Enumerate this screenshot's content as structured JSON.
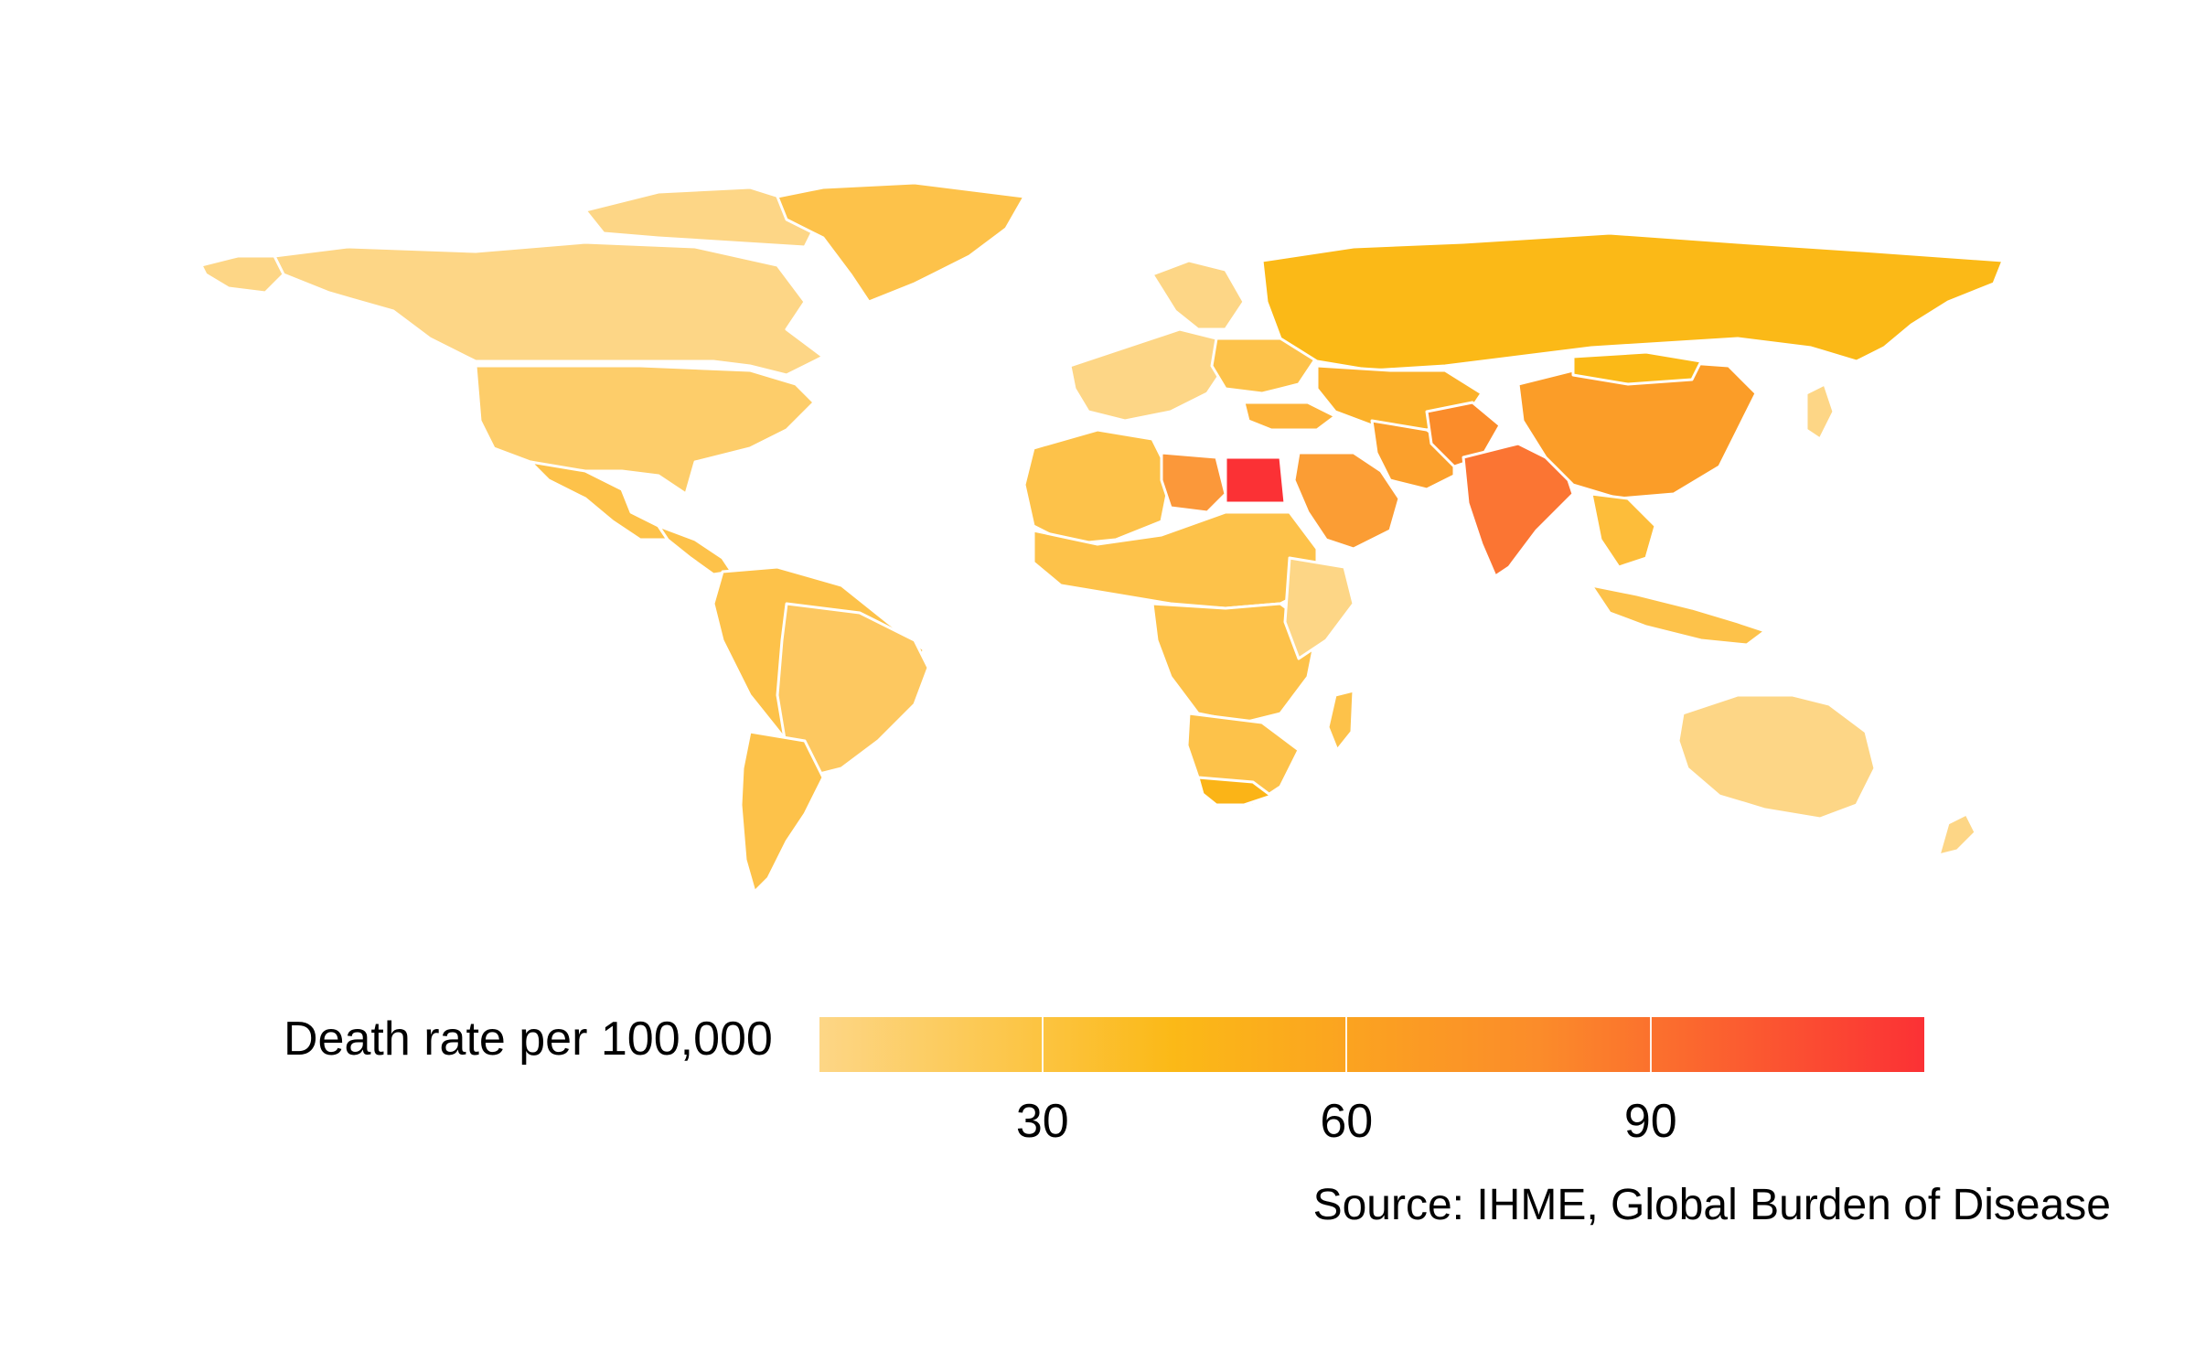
{
  "map": {
    "projection": "world",
    "colors": {
      "low": "#fdd686",
      "mid": "#fbb917",
      "high_mid": "#fb8c2a",
      "high": "#fb3135",
      "border": "#ffffff"
    },
    "regions": [
      {
        "name": "canada",
        "value": 14
      },
      {
        "name": "united-states",
        "value": 20
      },
      {
        "name": "greenland",
        "value": 28
      },
      {
        "name": "mexico",
        "value": 30
      },
      {
        "name": "brazil",
        "value": 28
      },
      {
        "name": "argentina",
        "value": 32
      },
      {
        "name": "russia",
        "value": 40
      },
      {
        "name": "china",
        "value": 62
      },
      {
        "name": "india",
        "value": 80
      },
      {
        "name": "egypt",
        "value": 112
      },
      {
        "name": "libya",
        "value": 66
      },
      {
        "name": "saudi-arabia",
        "value": 55
      },
      {
        "name": "australia",
        "value": 14
      },
      {
        "name": "south-africa",
        "value": 42
      }
    ]
  },
  "legend": {
    "title": "Death rate per 100,000",
    "ticks": [
      {
        "label": "30",
        "value": 30
      },
      {
        "label": "60",
        "value": 60
      },
      {
        "label": "90",
        "value": 90
      }
    ],
    "range": [
      8,
      117
    ]
  },
  "source": "Source: IHME, Global Burden of Disease"
}
